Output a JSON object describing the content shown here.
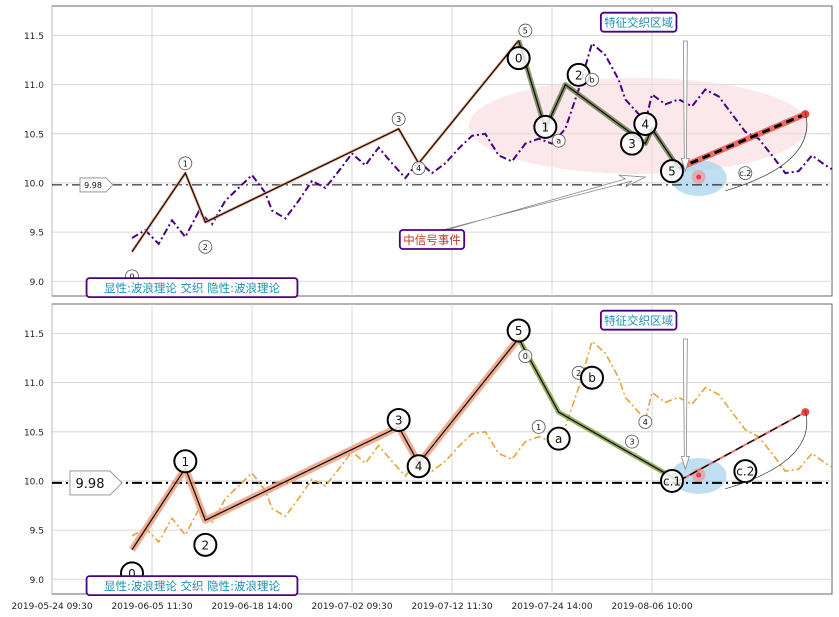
{
  "chart_data": [
    {
      "type": "line",
      "panel": "top",
      "ylim": [
        8.85,
        11.8
      ],
      "yticks": [
        "9.0",
        "9.5",
        "10.0",
        "10.5",
        "11.0",
        "11.5"
      ],
      "grid": true,
      "colors": {
        "price": "#4b0082",
        "impulse": "#f4a582",
        "corrective": "#556b2f",
        "forecast": "#e8453c",
        "zone": "#f8d8de",
        "signal": "#aad4ee",
        "frame": "#4b0082",
        "label_text": "#1e90b4",
        "event_text": "#c0392b"
      },
      "price_series": [
        [
          3,
          9.44
        ],
        [
          5,
          9.52
        ],
        [
          7,
          9.38
        ],
        [
          9,
          9.62
        ],
        [
          11,
          9.45
        ],
        [
          13,
          9.71
        ],
        [
          15,
          9.58
        ],
        [
          17,
          9.82
        ],
        [
          19,
          9.95
        ],
        [
          21,
          10.08
        ],
        [
          23,
          9.9
        ],
        [
          24,
          9.72
        ],
        [
          26,
          9.64
        ],
        [
          28,
          9.82
        ],
        [
          30,
          10.02
        ],
        [
          32,
          9.95
        ],
        [
          34,
          10.12
        ],
        [
          36,
          10.3
        ],
        [
          38,
          10.18
        ],
        [
          40,
          10.36
        ],
        [
          42,
          10.2
        ],
        [
          44,
          10.05
        ],
        [
          46,
          10.22
        ],
        [
          48,
          10.1
        ],
        [
          50,
          10.2
        ],
        [
          52,
          10.35
        ],
        [
          54,
          10.48
        ],
        [
          56,
          10.5
        ],
        [
          58,
          10.28
        ],
        [
          60,
          10.22
        ],
        [
          62,
          10.4
        ],
        [
          64,
          10.45
        ],
        [
          66,
          10.4
        ],
        [
          68,
          10.55
        ],
        [
          70,
          10.95
        ],
        [
          72,
          11.42
        ],
        [
          74,
          11.3
        ],
        [
          76,
          11.05
        ],
        [
          77,
          10.85
        ],
        [
          79,
          10.7
        ],
        [
          80,
          10.62
        ],
        [
          81,
          10.9
        ],
        [
          83,
          10.8
        ],
        [
          85,
          10.85
        ],
        [
          87,
          10.78
        ],
        [
          89,
          10.95
        ],
        [
          91,
          10.88
        ],
        [
          93,
          10.7
        ],
        [
          95,
          10.52
        ],
        [
          97,
          10.45
        ],
        [
          99,
          10.28
        ],
        [
          101,
          10.1
        ],
        [
          103,
          10.12
        ],
        [
          105,
          10.28
        ],
        [
          107,
          10.18
        ],
        [
          108,
          10.14
        ]
      ],
      "waves_main": [
        {
          "label": "0",
          "x": 3,
          "y": 9.3
        },
        {
          "label": "1",
          "x": 11,
          "y": 10.1
        },
        {
          "label": "2",
          "x": 14,
          "y": 9.6
        },
        {
          "label": "3",
          "x": 43,
          "y": 10.55
        },
        {
          "label": "4",
          "x": 46,
          "y": 10.2
        },
        {
          "label": "5",
          "x": 61,
          "y": 11.45
        }
      ],
      "waves_corrective": [
        {
          "label": "0",
          "x": 61,
          "y": 11.45
        },
        {
          "label": "1",
          "x": 65,
          "y": 10.55
        },
        {
          "label": "2",
          "x": 68,
          "y": 11.0
        },
        {
          "label": "3",
          "x": 80,
          "y": 10.4
        },
        {
          "label": "4",
          "x": 81,
          "y": 10.55
        },
        {
          "label": "5",
          "x": 85,
          "y": 10.15
        }
      ],
      "wave_labels": [
        {
          "text": "0",
          "x": 3,
          "y": 9.05,
          "size": "small"
        },
        {
          "text": "1",
          "x": 11,
          "y": 10.2,
          "size": "small"
        },
        {
          "text": "2",
          "x": 14,
          "y": 9.35,
          "size": "small"
        },
        {
          "text": "3",
          "x": 43,
          "y": 10.65,
          "size": "small"
        },
        {
          "text": "4",
          "x": 46,
          "y": 10.15,
          "size": "small"
        },
        {
          "text": "5",
          "x": 62,
          "y": 11.55,
          "size": "small"
        },
        {
          "text": "0",
          "x": 61,
          "y": 11.27,
          "size": "large"
        },
        {
          "text": "1",
          "x": 65,
          "y": 10.57,
          "size": "large"
        },
        {
          "text": "2",
          "x": 70,
          "y": 11.1,
          "size": "large"
        },
        {
          "text": "3",
          "x": 78,
          "y": 10.4,
          "size": "large"
        },
        {
          "text": "4",
          "x": 80,
          "y": 10.6,
          "size": "large"
        },
        {
          "text": "5",
          "x": 84,
          "y": 10.12,
          "size": "large"
        },
        {
          "text": "a",
          "x": 67,
          "y": 10.43,
          "size": "small"
        },
        {
          "text": "b",
          "x": 72,
          "y": 11.05,
          "size": "small"
        },
        {
          "text": "c.2",
          "x": 95,
          "y": 10.1,
          "size": "small"
        }
      ],
      "annotations": [
        {
          "text": "特征交织区域",
          "x": 79,
          "y": 11.63,
          "kind": "box"
        },
        {
          "text": "中信号事件",
          "x": 48,
          "y": 9.42,
          "kind": "box"
        },
        {
          "text": "显性:波浪理论 交织 隐性:波浪理论",
          "x": 12,
          "y": 8.93,
          "kind": "box"
        }
      ],
      "hline": 9.98,
      "hline_label": "9.98"
    },
    {
      "type": "line",
      "panel": "bottom",
      "ylim": [
        8.85,
        11.8
      ],
      "yticks": [
        "9.0",
        "9.5",
        "10.0",
        "10.5",
        "11.0",
        "11.5"
      ],
      "grid": true,
      "colors": {
        "price": "#e8a23c",
        "impulse": "#f0a080",
        "corrective": "#6b8e23",
        "forecast": "#e8453c",
        "zone": "#f8d8de",
        "signal": "#aad4ee",
        "frame": "#4b0082",
        "label_text": "#1e90b4"
      },
      "price_series": [
        [
          3,
          9.44
        ],
        [
          5,
          9.52
        ],
        [
          7,
          9.38
        ],
        [
          9,
          9.62
        ],
        [
          11,
          9.45
        ],
        [
          13,
          9.71
        ],
        [
          15,
          9.58
        ],
        [
          17,
          9.82
        ],
        [
          19,
          9.95
        ],
        [
          21,
          10.08
        ],
        [
          23,
          9.9
        ],
        [
          24,
          9.72
        ],
        [
          26,
          9.64
        ],
        [
          28,
          9.82
        ],
        [
          30,
          10.02
        ],
        [
          32,
          9.95
        ],
        [
          34,
          10.12
        ],
        [
          36,
          10.3
        ],
        [
          38,
          10.18
        ],
        [
          40,
          10.36
        ],
        [
          42,
          10.2
        ],
        [
          44,
          10.05
        ],
        [
          46,
          10.22
        ],
        [
          48,
          10.1
        ],
        [
          50,
          10.2
        ],
        [
          52,
          10.35
        ],
        [
          54,
          10.48
        ],
        [
          56,
          10.5
        ],
        [
          58,
          10.28
        ],
        [
          60,
          10.22
        ],
        [
          62,
          10.4
        ],
        [
          64,
          10.45
        ],
        [
          66,
          10.4
        ],
        [
          68,
          10.55
        ],
        [
          70,
          10.95
        ],
        [
          72,
          11.42
        ],
        [
          74,
          11.3
        ],
        [
          76,
          11.05
        ],
        [
          77,
          10.85
        ],
        [
          79,
          10.7
        ],
        [
          80,
          10.62
        ],
        [
          81,
          10.9
        ],
        [
          83,
          10.8
        ],
        [
          85,
          10.85
        ],
        [
          87,
          10.78
        ],
        [
          89,
          10.95
        ],
        [
          91,
          10.88
        ],
        [
          93,
          10.7
        ],
        [
          95,
          10.52
        ],
        [
          97,
          10.45
        ],
        [
          99,
          10.28
        ],
        [
          101,
          10.1
        ],
        [
          103,
          10.12
        ],
        [
          105,
          10.28
        ],
        [
          107,
          10.18
        ],
        [
          108,
          10.14
        ]
      ],
      "waves_main": [
        {
          "label": "0",
          "x": 3,
          "y": 9.3
        },
        {
          "label": "1",
          "x": 11,
          "y": 10.13
        },
        {
          "label": "2",
          "x": 14,
          "y": 9.6
        },
        {
          "label": "3",
          "x": 43,
          "y": 10.55
        },
        {
          "label": "4",
          "x": 46,
          "y": 10.18
        },
        {
          "label": "5",
          "x": 61,
          "y": 11.45
        }
      ],
      "waves_corrective": [
        {
          "label": "a",
          "x": 61,
          "y": 11.45
        },
        {
          "label": "b",
          "x": 67,
          "y": 10.7
        },
        {
          "label": "c",
          "x": 85,
          "y": 10.0
        }
      ],
      "wave_labels": [
        {
          "text": "0",
          "x": 3,
          "y": 9.06,
          "size": "large"
        },
        {
          "text": "1",
          "x": 11,
          "y": 10.2,
          "size": "large"
        },
        {
          "text": "2",
          "x": 14,
          "y": 9.35,
          "size": "large"
        },
        {
          "text": "3",
          "x": 43,
          "y": 10.62,
          "size": "large"
        },
        {
          "text": "4",
          "x": 46,
          "y": 10.15,
          "size": "large"
        },
        {
          "text": "5",
          "x": 61,
          "y": 11.53,
          "size": "large"
        },
        {
          "text": "0",
          "x": 62,
          "y": 11.27,
          "size": "small"
        },
        {
          "text": "1",
          "x": 64,
          "y": 10.55,
          "size": "small"
        },
        {
          "text": "2",
          "x": 70,
          "y": 11.1,
          "size": "small"
        },
        {
          "text": "3",
          "x": 78,
          "y": 10.4,
          "size": "small"
        },
        {
          "text": "4",
          "x": 80,
          "y": 10.6,
          "size": "small"
        },
        {
          "text": "a",
          "x": 67,
          "y": 10.43,
          "size": "large"
        },
        {
          "text": "b",
          "x": 72,
          "y": 11.05,
          "size": "large"
        },
        {
          "text": "c.1",
          "x": 84,
          "y": 10.0,
          "size": "large"
        },
        {
          "text": "c.2",
          "x": 95,
          "y": 10.1,
          "size": "large"
        }
      ],
      "annotations": [
        {
          "text": "特征交织区域",
          "x": 79,
          "y": 11.63,
          "kind": "box"
        },
        {
          "text": "显性:波浪理论 交织 隐性:波浪理论",
          "x": 12,
          "y": 8.93,
          "kind": "box"
        }
      ],
      "hline": 9.98,
      "hline_label": "9.98"
    }
  ],
  "x_axis": {
    "range": [
      -9,
      108
    ],
    "tick_positions": [
      -9,
      6,
      21,
      36,
      51,
      66,
      81
    ],
    "tick_labels": [
      "2019-05-24 09:30",
      "2019-06-05 11:30",
      "2019-06-18 14:00",
      "2019-07-02 09:30",
      "2019-07-12 11:30",
      "2019-07-24 14:00",
      "2019-08-06 10:00"
    ]
  }
}
